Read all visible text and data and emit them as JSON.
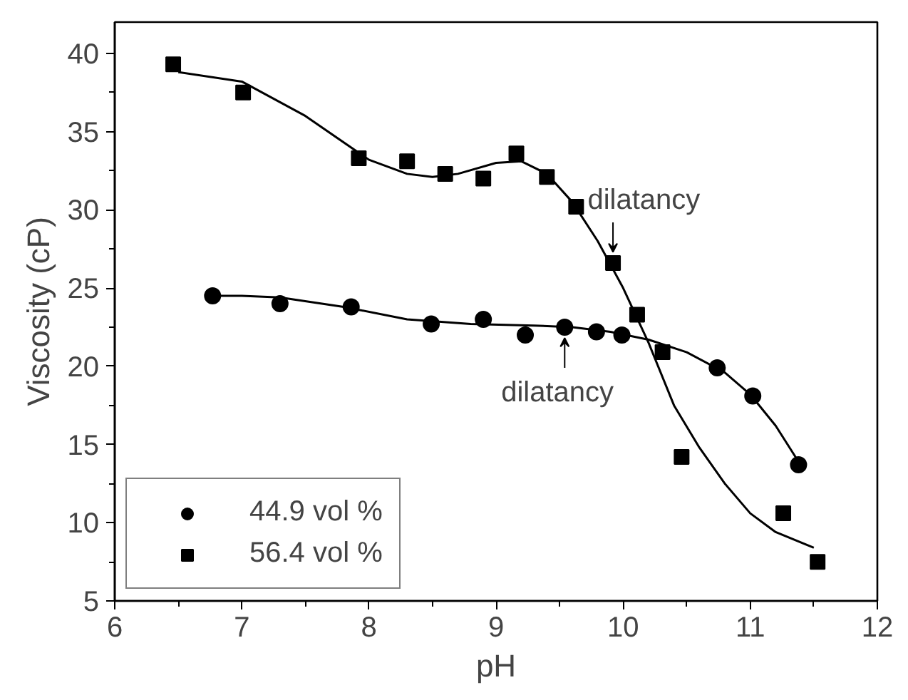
{
  "chart_data": {
    "type": "scatter",
    "xlabel": "pH",
    "ylabel": "Viscosity (cP)",
    "xlim": [
      6,
      12
    ],
    "ylim": [
      5,
      42
    ],
    "xticks": [
      6,
      7,
      8,
      9,
      10,
      11,
      12
    ],
    "yticks": [
      5,
      10,
      15,
      20,
      25,
      30,
      35,
      40
    ],
    "grid": false,
    "legend": "bottom left",
    "series": [
      {
        "name": "44.9 vol %",
        "color": "#000000",
        "marker": "circle",
        "x": [
          6.77,
          7.3,
          7.86,
          8.49,
          8.9,
          9.23,
          9.54,
          9.79,
          9.99,
          10.74,
          11.02,
          11.38
        ],
        "values": [
          24.5,
          24.0,
          23.8,
          22.7,
          23.0,
          22.0,
          22.5,
          22.2,
          22.0,
          19.9,
          18.1,
          13.7
        ]
      },
      {
        "name": "56.4 vol %",
        "color": "#000000",
        "marker": "square",
        "x": [
          6.46,
          7.01,
          7.92,
          8.3,
          8.6,
          8.9,
          9.16,
          9.4,
          9.63,
          9.92,
          10.11,
          10.31,
          10.46,
          11.26,
          11.53
        ],
        "values": [
          39.3,
          37.5,
          33.3,
          33.1,
          32.3,
          32.0,
          33.6,
          32.1,
          30.2,
          26.6,
          23.3,
          20.9,
          14.2,
          10.6,
          7.5
        ]
      },
      {
        "type": "line",
        "color": "#000000",
        "x": [
          6.77,
          7.0,
          7.3,
          7.8,
          8.3,
          8.8,
          9.3,
          9.6,
          9.9,
          10.2,
          10.5,
          10.8,
          11.0,
          11.2,
          11.38
        ],
        "values": [
          24.5,
          24.5,
          24.4,
          23.8,
          23.0,
          22.7,
          22.6,
          22.5,
          22.2,
          21.7,
          20.9,
          19.6,
          18.2,
          16.2,
          13.9
        ]
      },
      {
        "type": "line",
        "color": "#000000",
        "x": [
          6.5,
          7.0,
          7.5,
          8.0,
          8.3,
          8.5,
          8.7,
          9.0,
          9.2,
          9.4,
          9.6,
          9.8,
          10.0,
          10.2,
          10.4,
          10.6,
          10.8,
          11.0,
          11.2,
          11.5
        ],
        "values": [
          38.8,
          38.2,
          36.0,
          33.2,
          32.3,
          32.1,
          32.3,
          33.0,
          33.1,
          32.3,
          30.5,
          28.0,
          25.0,
          21.5,
          17.5,
          14.8,
          12.5,
          10.6,
          9.4,
          8.4
        ]
      }
    ],
    "annotations": [
      {
        "text": "dilatancy",
        "x": 9.92,
        "y": 26.6
      },
      {
        "text": "dilatancy",
        "x": 9.54,
        "y": 22.5
      }
    ]
  }
}
